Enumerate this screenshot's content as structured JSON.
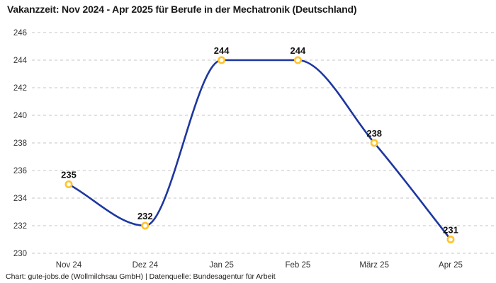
{
  "title": "Vakanzzeit: Nov 2024 - Apr 2025 für Berufe in der Mechatronik (Deutschland)",
  "footer": "Chart: gute-jobs.de (Wollmilchsau GmbH) | Datenquelle: Bundesagentur für Arbeit",
  "chart_data": {
    "type": "line",
    "title": "Vakanzzeit: Nov 2024 - Apr 2025 für Berufe in der Mechatronik (Deutschland)",
    "categories": [
      "Nov 24",
      "Dez 24",
      "Jan 25",
      "Feb 25",
      "März 25",
      "Apr 25"
    ],
    "series": [
      {
        "name": "Vakanzzeit",
        "values": [
          235,
          232,
          244,
          244,
          238,
          231
        ]
      }
    ],
    "data_labels": [
      "235",
      "232",
      "244",
      "244",
      "238",
      "231"
    ],
    "xlabel": "",
    "ylabel": "",
    "ylim": [
      230,
      246
    ],
    "ytick_step": 2,
    "ytick_labels": [
      "230",
      "232",
      "234",
      "236",
      "238",
      "240",
      "242",
      "244",
      "246"
    ],
    "grid": "horizontal-dashed",
    "legend": "none",
    "curve": "smooth",
    "colors": {
      "line": "#1d37a0",
      "marker_ring": "#ffc32b",
      "marker_fill": "#ffffff",
      "grid": "#c6c6c6",
      "axis_text": "#333333",
      "point_label": "#111111",
      "title_text": "#1a1a1a",
      "footer_text": "#1a1a1a",
      "background": "#ffffff"
    }
  }
}
